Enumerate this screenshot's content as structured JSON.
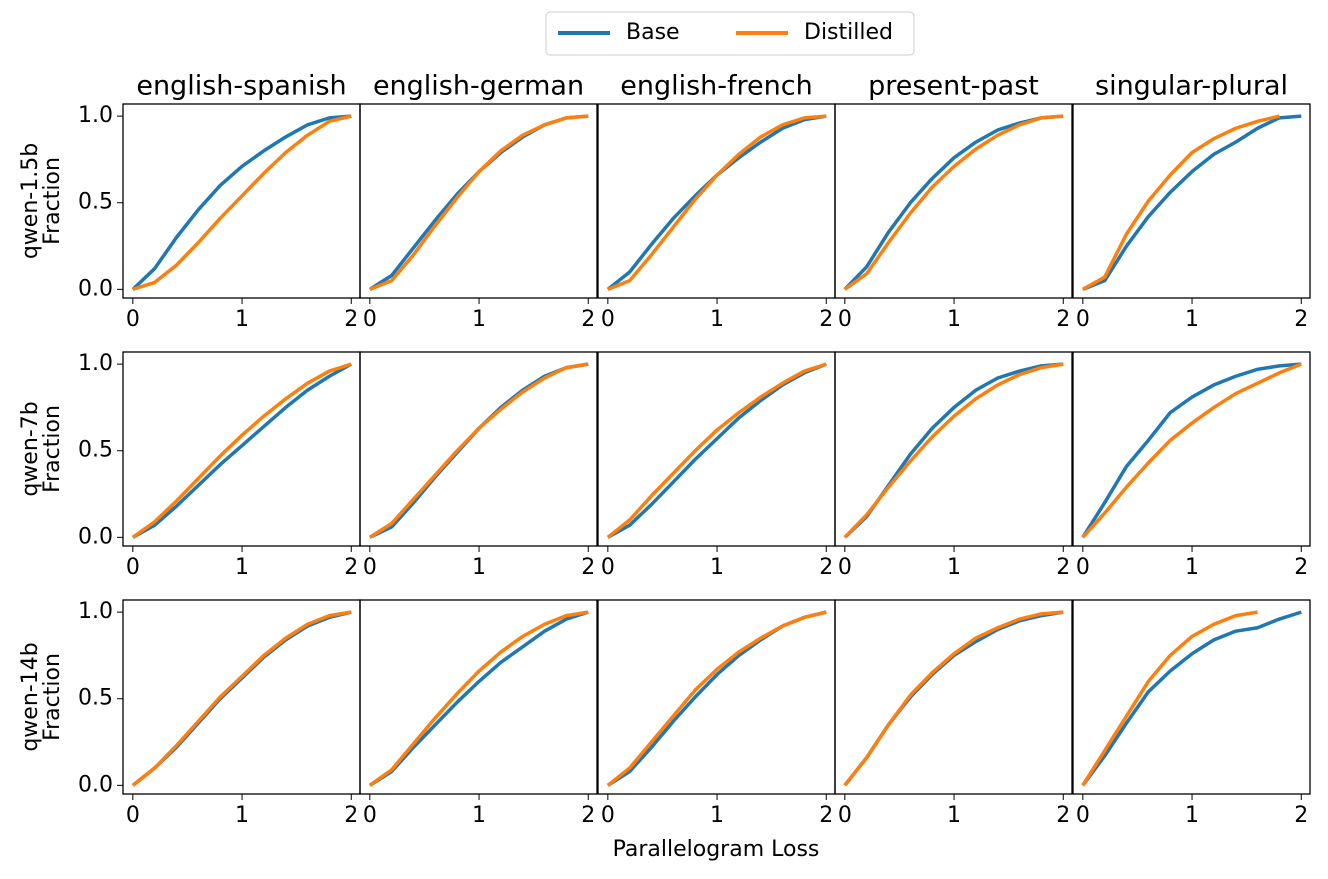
{
  "legend": {
    "series": [
      {
        "name": "Base",
        "color": "#1f77b4"
      },
      {
        "name": "Distilled",
        "color": "#ff7f0e"
      }
    ]
  },
  "xlabel": "Parallelogram Loss",
  "chart_data": [
    {
      "type": "line",
      "title": "english-spanish",
      "ylabel": [
        "qwen-1.5b",
        "Fraction"
      ],
      "x": [
        0,
        0.2,
        0.4,
        0.6,
        0.8,
        1.0,
        1.2,
        1.4,
        1.6,
        1.8,
        2.0
      ],
      "series": [
        {
          "values": [
            0,
            0.12,
            0.3,
            0.46,
            0.6,
            0.71,
            0.8,
            0.88,
            0.95,
            0.99,
            1
          ]
        },
        {
          "values": [
            0,
            0.04,
            0.14,
            0.27,
            0.41,
            0.54,
            0.67,
            0.79,
            0.89,
            0.97,
            1
          ]
        }
      ],
      "xlim": [
        -0.09,
        2.08
      ],
      "ylim": [
        -0.05,
        1.07
      ],
      "xticks": [
        0,
        1,
        2
      ],
      "yticks": [
        {
          "value": 0,
          "label": "0.0"
        },
        {
          "value": 0.5,
          "label": "0.5"
        },
        {
          "value": 1,
          "label": "1.0"
        }
      ]
    },
    {
      "type": "line",
      "title": "english-german",
      "x": [
        0,
        0.2,
        0.4,
        0.6,
        0.8,
        1.0,
        1.2,
        1.4,
        1.6,
        1.8,
        2.0
      ],
      "series": [
        {
          "values": [
            0,
            0.08,
            0.24,
            0.4,
            0.55,
            0.68,
            0.79,
            0.88,
            0.95,
            0.99,
            1
          ]
        },
        {
          "values": [
            0,
            0.05,
            0.2,
            0.37,
            0.53,
            0.68,
            0.8,
            0.89,
            0.95,
            0.99,
            1
          ]
        }
      ],
      "xlim": [
        -0.09,
        2.08
      ],
      "ylim": [
        -0.05,
        1.07
      ],
      "xticks": [
        0,
        1,
        2
      ]
    },
    {
      "type": "line",
      "title": "english-french",
      "x": [
        0,
        0.2,
        0.4,
        0.6,
        0.8,
        1.0,
        1.2,
        1.4,
        1.6,
        1.8,
        2.0
      ],
      "series": [
        {
          "values": [
            0,
            0.1,
            0.26,
            0.41,
            0.54,
            0.66,
            0.76,
            0.85,
            0.93,
            0.98,
            1
          ]
        },
        {
          "values": [
            0,
            0.05,
            0.2,
            0.36,
            0.52,
            0.66,
            0.78,
            0.88,
            0.95,
            0.99,
            1
          ]
        }
      ],
      "xlim": [
        -0.09,
        2.08
      ],
      "ylim": [
        -0.05,
        1.07
      ],
      "xticks": [
        0,
        1,
        2
      ]
    },
    {
      "type": "line",
      "title": "present-past",
      "x": [
        0,
        0.2,
        0.4,
        0.6,
        0.8,
        1.0,
        1.2,
        1.4,
        1.6,
        1.8,
        2.0
      ],
      "series": [
        {
          "values": [
            0,
            0.13,
            0.33,
            0.5,
            0.64,
            0.76,
            0.85,
            0.92,
            0.96,
            0.99,
            1
          ]
        },
        {
          "values": [
            0,
            0.09,
            0.27,
            0.44,
            0.59,
            0.71,
            0.81,
            0.89,
            0.95,
            0.99,
            1
          ]
        }
      ],
      "xlim": [
        -0.09,
        2.08
      ],
      "ylim": [
        -0.05,
        1.07
      ],
      "xticks": [
        0,
        1,
        2
      ]
    },
    {
      "type": "line",
      "title": "singular-plural",
      "x": [
        0,
        0.2,
        0.4,
        0.6,
        0.8,
        1.0,
        1.2,
        1.4,
        1.6,
        1.8,
        2.0
      ],
      "series": [
        {
          "values": [
            0,
            0.05,
            0.25,
            0.42,
            0.56,
            0.68,
            0.78,
            0.85,
            0.93,
            0.99,
            1
          ]
        },
        {
          "values": [
            0,
            0.07,
            0.32,
            0.51,
            0.66,
            0.79,
            0.87,
            0.93,
            0.97,
            1.0,
            null
          ]
        }
      ],
      "xlim": [
        -0.09,
        2.08
      ],
      "ylim": [
        -0.05,
        1.07
      ],
      "xticks": [
        0,
        1,
        2
      ]
    },
    {
      "type": "line",
      "ylabel": [
        "qwen-7b",
        "Fraction"
      ],
      "x": [
        0,
        0.2,
        0.4,
        0.6,
        0.8,
        1.0,
        1.2,
        1.4,
        1.6,
        1.8,
        2.0
      ],
      "series": [
        {
          "values": [
            0,
            0.07,
            0.18,
            0.3,
            0.42,
            0.53,
            0.64,
            0.75,
            0.85,
            0.93,
            1
          ]
        },
        {
          "values": [
            0,
            0.09,
            0.21,
            0.34,
            0.47,
            0.59,
            0.7,
            0.8,
            0.89,
            0.96,
            1
          ]
        }
      ],
      "xlim": [
        -0.09,
        2.08
      ],
      "ylim": [
        -0.05,
        1.07
      ],
      "xticks": [
        0,
        1,
        2
      ],
      "yticks": [
        {
          "value": 0,
          "label": "0.0"
        },
        {
          "value": 0.5,
          "label": "0.5"
        },
        {
          "value": 1,
          "label": "1.0"
        }
      ]
    },
    {
      "type": "line",
      "x": [
        0,
        0.2,
        0.4,
        0.6,
        0.8,
        1.0,
        1.2,
        1.4,
        1.6,
        1.8,
        2.0
      ],
      "series": [
        {
          "values": [
            0,
            0.06,
            0.2,
            0.35,
            0.49,
            0.63,
            0.75,
            0.85,
            0.93,
            0.98,
            1
          ]
        },
        {
          "values": [
            0,
            0.08,
            0.22,
            0.36,
            0.5,
            0.63,
            0.74,
            0.84,
            0.92,
            0.98,
            1
          ]
        }
      ],
      "xlim": [
        -0.09,
        2.08
      ],
      "ylim": [
        -0.05,
        1.07
      ],
      "xticks": [
        0,
        1,
        2
      ]
    },
    {
      "type": "line",
      "x": [
        0,
        0.2,
        0.4,
        0.6,
        0.8,
        1.0,
        1.2,
        1.4,
        1.6,
        1.8,
        2.0
      ],
      "series": [
        {
          "values": [
            0,
            0.07,
            0.19,
            0.32,
            0.45,
            0.57,
            0.69,
            0.79,
            0.88,
            0.95,
            1
          ]
        },
        {
          "values": [
            0,
            0.1,
            0.24,
            0.37,
            0.5,
            0.62,
            0.72,
            0.81,
            0.89,
            0.96,
            1
          ]
        }
      ],
      "xlim": [
        -0.09,
        2.08
      ],
      "ylim": [
        -0.05,
        1.07
      ],
      "xticks": [
        0,
        1,
        2
      ]
    },
    {
      "type": "line",
      "x": [
        0,
        0.2,
        0.4,
        0.6,
        0.8,
        1.0,
        1.2,
        1.4,
        1.6,
        1.8,
        2.0
      ],
      "series": [
        {
          "values": [
            0,
            0.12,
            0.3,
            0.48,
            0.63,
            0.75,
            0.85,
            0.92,
            0.96,
            0.99,
            1
          ]
        },
        {
          "values": [
            0,
            0.13,
            0.29,
            0.44,
            0.58,
            0.7,
            0.8,
            0.88,
            0.94,
            0.98,
            1
          ]
        }
      ],
      "xlim": [
        -0.09,
        2.08
      ],
      "ylim": [
        -0.05,
        1.07
      ],
      "xticks": [
        0,
        1,
        2
      ]
    },
    {
      "type": "line",
      "x": [
        0,
        0.2,
        0.4,
        0.6,
        0.8,
        1.0,
        1.2,
        1.4,
        1.6,
        1.8,
        2.0
      ],
      "series": [
        {
          "values": [
            0,
            0.2,
            0.41,
            0.56,
            0.72,
            0.81,
            0.88,
            0.93,
            0.97,
            0.99,
            1
          ]
        },
        {
          "values": [
            0,
            0.14,
            0.29,
            0.43,
            0.56,
            0.66,
            0.75,
            0.83,
            0.89,
            0.95,
            1
          ]
        }
      ],
      "xlim": [
        -0.09,
        2.08
      ],
      "ylim": [
        -0.05,
        1.07
      ],
      "xticks": [
        0,
        1,
        2
      ]
    },
    {
      "type": "line",
      "ylabel": [
        "qwen-14b",
        "Fraction"
      ],
      "x": [
        0,
        0.2,
        0.4,
        0.6,
        0.8,
        1.0,
        1.2,
        1.4,
        1.6,
        1.8,
        2.0
      ],
      "series": [
        {
          "values": [
            0,
            0.1,
            0.22,
            0.36,
            0.5,
            0.62,
            0.74,
            0.84,
            0.92,
            0.97,
            1
          ]
        },
        {
          "values": [
            0,
            0.1,
            0.23,
            0.37,
            0.51,
            0.63,
            0.75,
            0.85,
            0.93,
            0.98,
            1
          ]
        }
      ],
      "xlim": [
        -0.09,
        2.08
      ],
      "ylim": [
        -0.05,
        1.07
      ],
      "xticks": [
        0,
        1,
        2
      ],
      "yticks": [
        {
          "value": 0,
          "label": "0.0"
        },
        {
          "value": 0.5,
          "label": "0.5"
        },
        {
          "value": 1,
          "label": "1.0"
        }
      ]
    },
    {
      "type": "line",
      "x": [
        0,
        0.2,
        0.4,
        0.6,
        0.8,
        1.0,
        1.2,
        1.4,
        1.6,
        1.8,
        2.0
      ],
      "series": [
        {
          "values": [
            0,
            0.08,
            0.22,
            0.35,
            0.48,
            0.6,
            0.71,
            0.8,
            0.89,
            0.96,
            1
          ]
        },
        {
          "values": [
            0,
            0.09,
            0.24,
            0.39,
            0.53,
            0.66,
            0.77,
            0.86,
            0.93,
            0.98,
            1
          ]
        }
      ],
      "xlim": [
        -0.09,
        2.08
      ],
      "ylim": [
        -0.05,
        1.07
      ],
      "xticks": [
        0,
        1,
        2
      ]
    },
    {
      "type": "line",
      "x": [
        0,
        0.2,
        0.4,
        0.6,
        0.8,
        1.0,
        1.2,
        1.4,
        1.6,
        1.8,
        2.0
      ],
      "series": [
        {
          "values": [
            0,
            0.08,
            0.22,
            0.37,
            0.51,
            0.64,
            0.75,
            0.84,
            0.92,
            0.97,
            1
          ]
        },
        {
          "values": [
            0,
            0.1,
            0.25,
            0.4,
            0.55,
            0.67,
            0.77,
            0.85,
            0.92,
            0.97,
            1
          ]
        }
      ],
      "xlim": [
        -0.09,
        2.08
      ],
      "ylim": [
        -0.05,
        1.07
      ],
      "xticks": [
        0,
        1,
        2
      ]
    },
    {
      "type": "line",
      "x": [
        0,
        0.2,
        0.4,
        0.6,
        0.8,
        1.0,
        1.2,
        1.4,
        1.6,
        1.8,
        2.0
      ],
      "series": [
        {
          "values": [
            0,
            0.16,
            0.35,
            0.51,
            0.64,
            0.75,
            0.83,
            0.9,
            0.95,
            0.98,
            1
          ]
        },
        {
          "values": [
            0,
            0.16,
            0.35,
            0.52,
            0.65,
            0.76,
            0.85,
            0.91,
            0.96,
            0.99,
            1
          ]
        }
      ],
      "xlim": [
        -0.09,
        2.08
      ],
      "ylim": [
        -0.05,
        1.07
      ],
      "xticks": [
        0,
        1,
        2
      ]
    },
    {
      "type": "line",
      "x": [
        0,
        0.2,
        0.4,
        0.6,
        0.8,
        1.0,
        1.2,
        1.4,
        1.6,
        1.8,
        2.0
      ],
      "series": [
        {
          "values": [
            0,
            0.17,
            0.36,
            0.54,
            0.66,
            0.76,
            0.84,
            0.89,
            0.91,
            0.96,
            1
          ]
        },
        {
          "values": [
            0,
            0.2,
            0.4,
            0.6,
            0.75,
            0.86,
            0.93,
            0.98,
            1.0,
            null,
            null
          ]
        }
      ],
      "xlim": [
        -0.09,
        2.08
      ],
      "ylim": [
        -0.05,
        1.07
      ],
      "xticks": [
        0,
        1,
        2
      ]
    }
  ]
}
